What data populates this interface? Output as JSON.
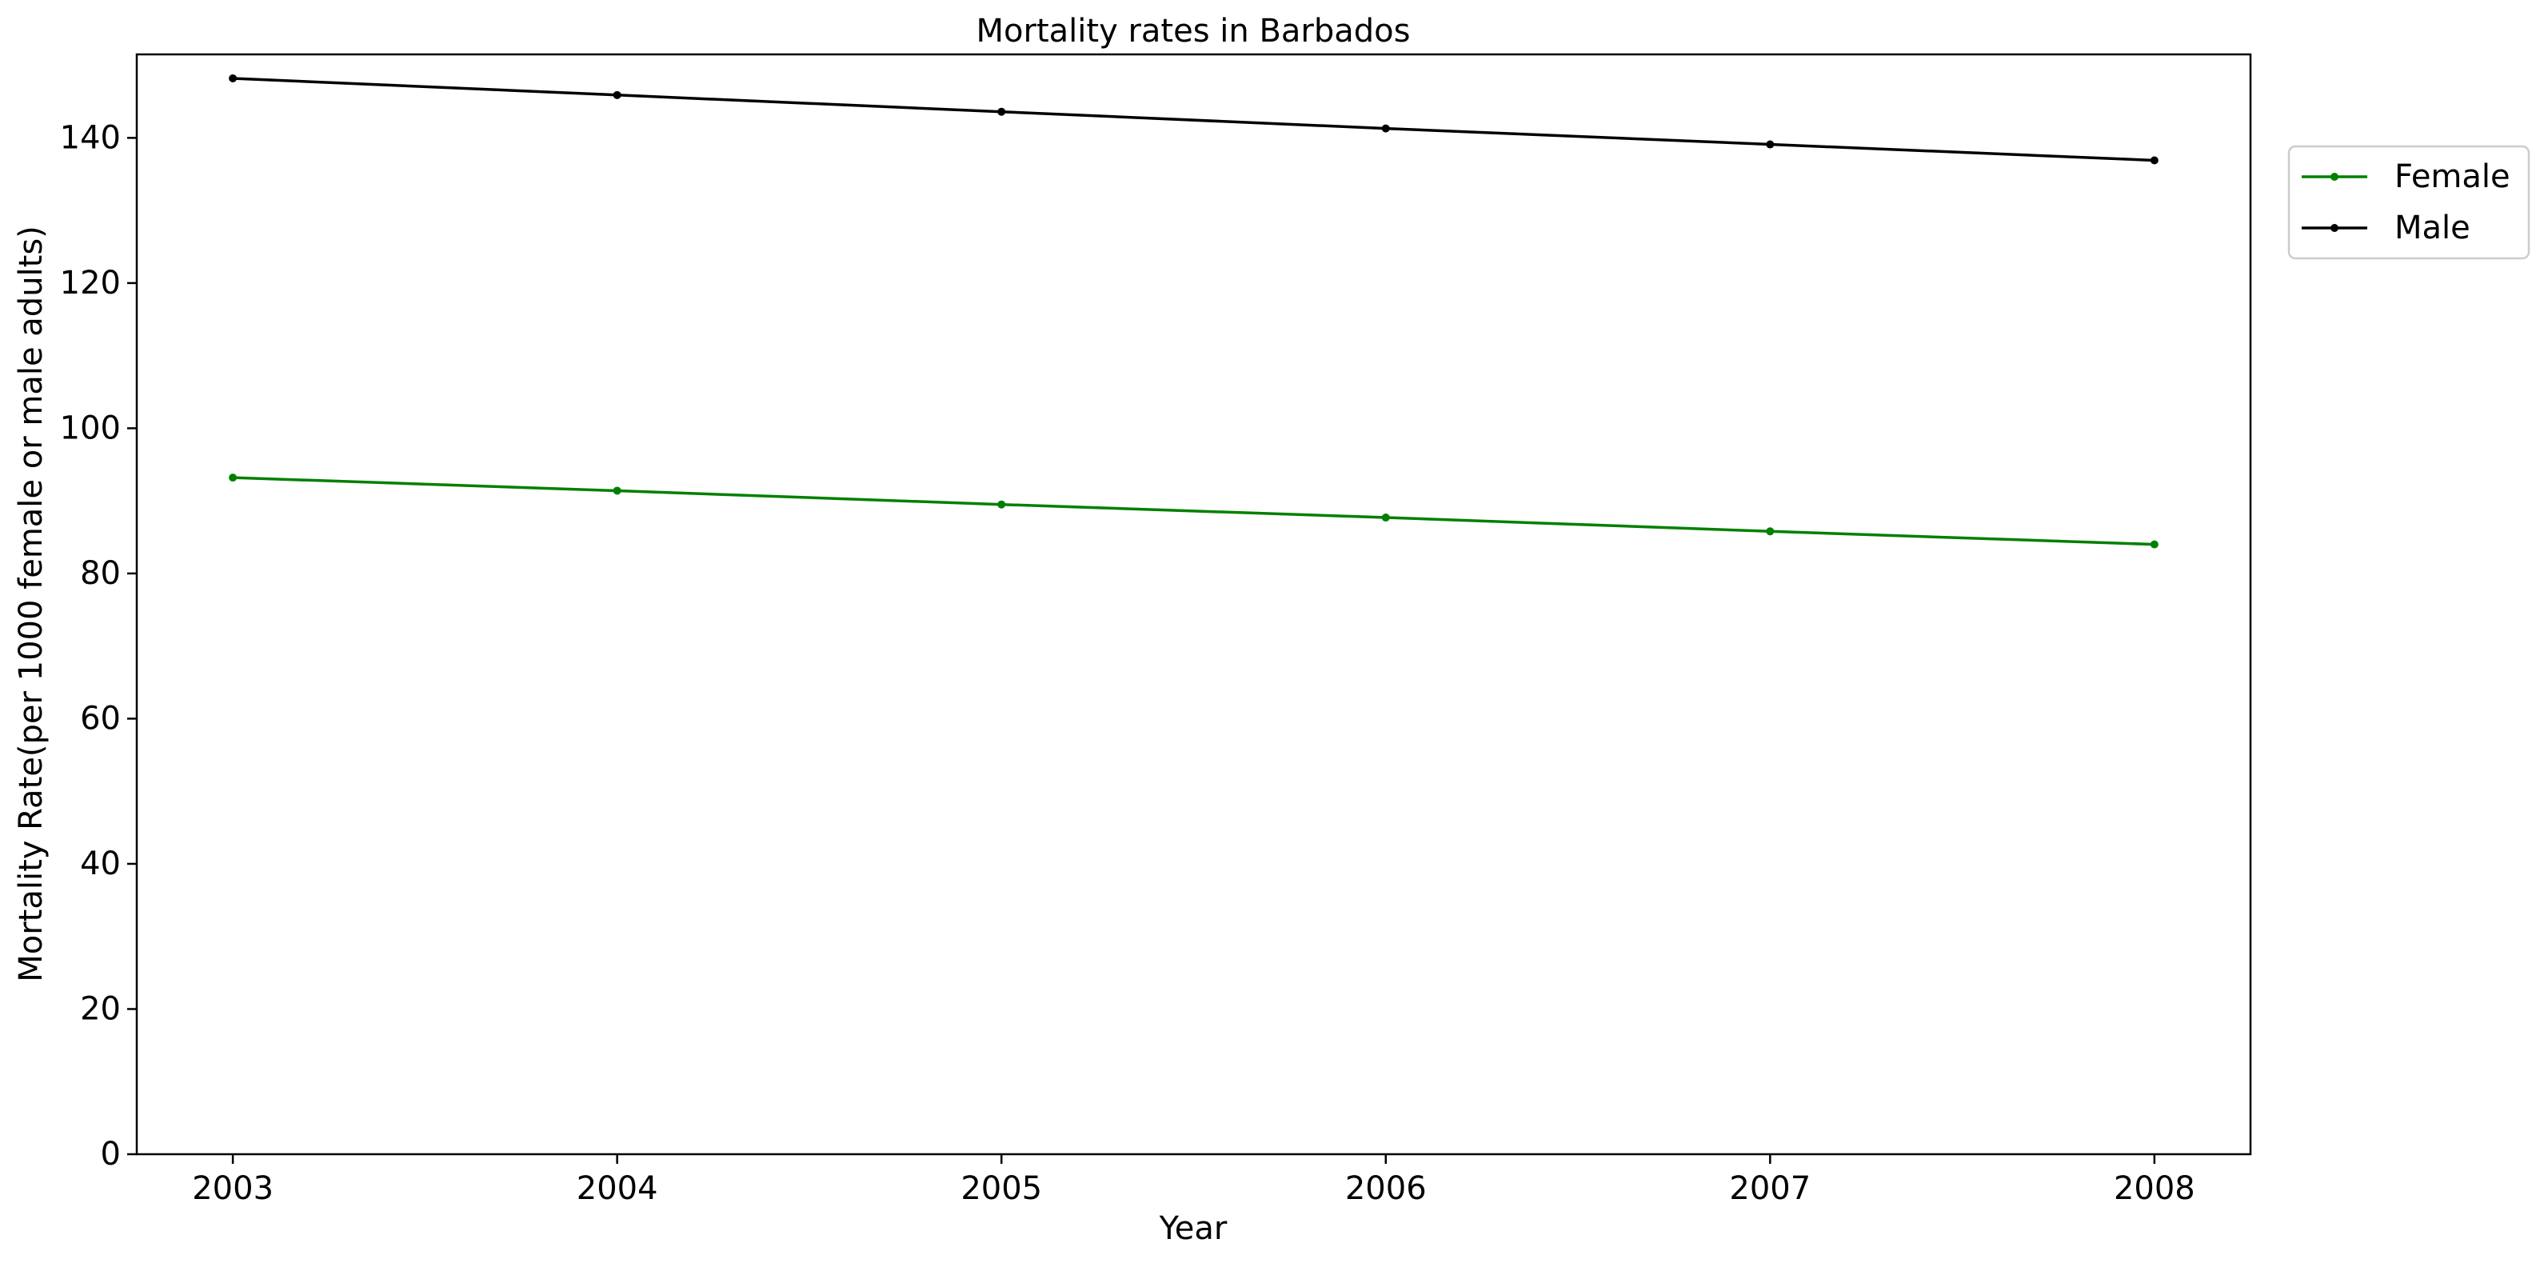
{
  "chart_data": {
    "type": "line",
    "title": "Mortality rates in Barbados",
    "xlabel": "Year",
    "ylabel": "Mortality Rate(per 1000 female or male adults)",
    "x": [
      2003,
      2004,
      2005,
      2006,
      2007,
      2008
    ],
    "x_tick_labels": [
      "2003",
      "2004",
      "2005",
      "2006",
      "2007",
      "2008"
    ],
    "y_ticks": [
      0,
      20,
      40,
      60,
      80,
      100,
      120,
      140
    ],
    "y_tick_labels": [
      "0",
      "20",
      "40",
      "60",
      "80",
      "100",
      "120",
      "140"
    ],
    "xlim": [
      2002.75,
      2008.25
    ],
    "ylim": [
      0,
      151.5
    ],
    "grid": false,
    "legend_position": "upper right, outside plot area",
    "series": [
      {
        "name": "Female",
        "color": "#008000",
        "marker": "dot",
        "values": [
          93.2,
          91.4,
          89.5,
          87.7,
          85.8,
          84.0
        ]
      },
      {
        "name": "Male",
        "color": "#000000",
        "marker": "dot",
        "values": [
          148.2,
          145.9,
          143.6,
          141.3,
          139.1,
          136.9
        ]
      }
    ]
  }
}
